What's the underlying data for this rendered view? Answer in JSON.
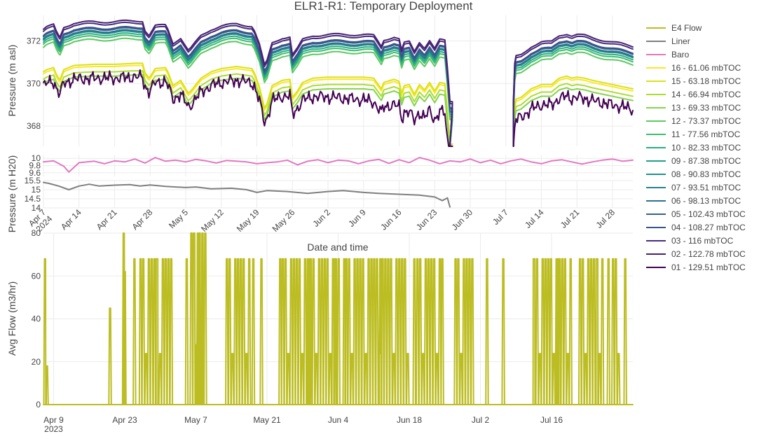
{
  "chart_data": {
    "type": "line",
    "title": "ELR1-R1: Temporary Deployment",
    "top_xaxis": {
      "label": "Date and time",
      "ticks": [
        {
          "label": "Apr 7\n2024",
          "day": 0
        },
        {
          "label": "Apr 14",
          "day": 7
        },
        {
          "label": "Apr 21",
          "day": 14
        },
        {
          "label": "Apr 28",
          "day": 21
        },
        {
          "label": "May 5",
          "day": 28
        },
        {
          "label": "May 12",
          "day": 35
        },
        {
          "label": "May 19",
          "day": 42
        },
        {
          "label": "May 26",
          "day": 49
        },
        {
          "label": "Jun 2",
          "day": 56
        },
        {
          "label": "Jun 9",
          "day": 63
        },
        {
          "label": "Jun 16",
          "day": 70
        },
        {
          "label": "Jun 23",
          "day": 77
        },
        {
          "label": "Jun 30",
          "day": 84
        },
        {
          "label": "Jul 7",
          "day": 91
        },
        {
          "label": "Jul 14",
          "day": 98
        },
        {
          "label": "Jul 21",
          "day": 105
        },
        {
          "label": "Jul 28",
          "day": 112
        }
      ],
      "range_days": [
        0,
        116
      ]
    },
    "bottom_xaxis": {
      "ticks": [
        {
          "label": "Apr 9\n2023",
          "day": 0
        },
        {
          "label": "Apr 23",
          "day": 14
        },
        {
          "label": "May 7",
          "day": 28
        },
        {
          "label": "May 21",
          "day": 42
        },
        {
          "label": "Jun 4",
          "day": 56
        },
        {
          "label": "Jun 18",
          "day": 70
        },
        {
          "label": "Jul 2",
          "day": 84
        },
        {
          "label": "Jul 16",
          "day": 98
        }
      ],
      "range_days": [
        -2,
        114
      ]
    },
    "panels": {
      "pressure": {
        "ylabel": "Pressure (m asl)",
        "ylim": [
          367.05,
          373.2
        ],
        "ticks": [
          368,
          370,
          372
        ]
      },
      "baro": {
        "ylabel": "",
        "ylim": [
          9.5,
          10.1
        ],
        "ticks": [
          9.6,
          9.8,
          10
        ]
      },
      "liner": {
        "ylabel": "Pressure (m H20)",
        "ylim": [
          14,
          15.5
        ],
        "ticks": [
          14,
          14.5,
          15,
          15.5
        ]
      },
      "flow": {
        "ylabel": "Avg Flow (m3/hr)",
        "ylim": [
          0,
          80
        ],
        "ticks": [
          0,
          20,
          40,
          60,
          80
        ]
      }
    },
    "legend_position": "right",
    "gap_days": [
      80.5,
      92.5
    ],
    "legend": [
      {
        "name": "E4 Flow",
        "color": "#bcbd22"
      },
      {
        "name": "Liner",
        "color": "#7f7f7f"
      },
      {
        "name": "Baro",
        "color": "#e377c2"
      },
      {
        "name": "16 - 61.06 mbTOC",
        "color": "#fde725"
      },
      {
        "name": "15 - 63.18 mbTOC",
        "color": "#d8e219"
      },
      {
        "name": "14 - 66.94 mbTOC",
        "color": "#addc30"
      },
      {
        "name": "13 - 69.33 mbTOC",
        "color": "#84d44b"
      },
      {
        "name": "12 - 73.37 mbTOC",
        "color": "#5ec962"
      },
      {
        "name": "11 - 77.56 mbTOC",
        "color": "#3fbc73"
      },
      {
        "name": "10 - 82.33 mbTOC",
        "color": "#28ae80"
      },
      {
        "name": "09 - 87.38 mbTOC",
        "color": "#1fa088"
      },
      {
        "name": "08 - 90.83 mbTOC",
        "color": "#21918c"
      },
      {
        "name": "07 - 93.51 mbTOC",
        "color": "#26828e"
      },
      {
        "name": "06 - 98.13 mbTOC",
        "color": "#2c728e"
      },
      {
        "name": "05 - 102.43 mbTOC",
        "color": "#33638d"
      },
      {
        "name": "04 - 108.27 mbTOC",
        "color": "#3b528b"
      },
      {
        "name": "03 - 116 mbTOC",
        "color": "#472d7b"
      },
      {
        "name": "02 - 122.78 mbTOC",
        "color": "#482173"
      },
      {
        "name": "01 - 129.51 mbTOC",
        "color": "#440154"
      }
    ],
    "port_offsets": [
      -0.15,
      -0.05,
      -0.4,
      -0.6,
      1.1,
      1.25,
      1.35,
      1.45,
      1.45,
      1.5,
      1.5,
      1.6,
      1.65,
      1.85,
      1.95,
      -0.7
    ],
    "pressure_base": [
      [
        0,
        370.6
      ],
      [
        0.6,
        370.7
      ],
      [
        2,
        370.8
      ],
      [
        2.5,
        370.5
      ],
      [
        3.2,
        370.2
      ],
      [
        4,
        370.7
      ],
      [
        6,
        370.9
      ],
      [
        10,
        370.95
      ],
      [
        14,
        370.95
      ],
      [
        18,
        371.0
      ],
      [
        19.5,
        371.0
      ],
      [
        20,
        370.55
      ],
      [
        20.8,
        370.3
      ],
      [
        22,
        370.75
      ],
      [
        24,
        370.8
      ],
      [
        24.5,
        370.6
      ],
      [
        25.5,
        369.95
      ],
      [
        27,
        370.2
      ],
      [
        28.5,
        369.6
      ],
      [
        29,
        369.7
      ],
      [
        31,
        370.3
      ],
      [
        33,
        370.6
      ],
      [
        35,
        370.75
      ],
      [
        38,
        370.85
      ],
      [
        41,
        370.75
      ],
      [
        41.5,
        370.55
      ],
      [
        42.5,
        369.9
      ],
      [
        43.5,
        368.9
      ],
      [
        44,
        369.1
      ],
      [
        45,
        369.95
      ],
      [
        47,
        370.2
      ],
      [
        48.5,
        370.25
      ],
      [
        49,
        369.4
      ],
      [
        50,
        369.7
      ],
      [
        51,
        370.1
      ],
      [
        53,
        370.3
      ],
      [
        56,
        370.35
      ],
      [
        59,
        370.35
      ],
      [
        63,
        370.35
      ],
      [
        65,
        370.3
      ],
      [
        66.5,
        369.8
      ],
      [
        67,
        370.1
      ],
      [
        69,
        370.25
      ],
      [
        70,
        370.15
      ],
      [
        70.5,
        369.6
      ],
      [
        71,
        369.95
      ],
      [
        72,
        370.0
      ],
      [
        73,
        369.55
      ],
      [
        74,
        370.0
      ],
      [
        75,
        369.75
      ],
      [
        76,
        370.1
      ],
      [
        77,
        369.7
      ],
      [
        78,
        370.1
      ],
      [
        79,
        370.05
      ],
      [
        79.6,
        368.5
      ],
      [
        80,
        367.2
      ],
      [
        92.5,
        367.2
      ],
      [
        92.8,
        369.3
      ],
      [
        94,
        369.4
      ],
      [
        96,
        369.8
      ],
      [
        98,
        370.0
      ],
      [
        100,
        370.0
      ],
      [
        101.5,
        370.3
      ],
      [
        103,
        370.4
      ],
      [
        104,
        370.3
      ],
      [
        105,
        370.35
      ],
      [
        106.5,
        370.3
      ],
      [
        108,
        370.2
      ],
      [
        110,
        370.1
      ],
      [
        112,
        370.0
      ],
      [
        114,
        369.9
      ],
      [
        116,
        369.8
      ]
    ],
    "baro_data": [
      [
        0,
        9.9
      ],
      [
        2,
        9.93
      ],
      [
        4,
        9.78
      ],
      [
        5,
        9.62
      ],
      [
        6,
        9.75
      ],
      [
        7,
        9.88
      ],
      [
        10,
        9.92
      ],
      [
        12,
        9.85
      ],
      [
        14,
        9.93
      ],
      [
        16,
        9.9
      ],
      [
        18,
        9.98
      ],
      [
        20,
        9.87
      ],
      [
        22,
        10.02
      ],
      [
        24,
        9.92
      ],
      [
        26,
        9.95
      ],
      [
        28,
        9.9
      ],
      [
        30,
        9.97
      ],
      [
        32,
        9.93
      ],
      [
        34,
        9.87
      ],
      [
        36,
        9.94
      ],
      [
        38,
        9.92
      ],
      [
        40,
        9.9
      ],
      [
        42,
        9.85
      ],
      [
        44,
        9.88
      ],
      [
        46,
        9.9
      ],
      [
        48,
        9.95
      ],
      [
        50,
        9.82
      ],
      [
        52,
        9.92
      ],
      [
        54,
        9.96
      ],
      [
        56,
        9.88
      ],
      [
        58,
        9.95
      ],
      [
        60,
        9.93
      ],
      [
        62,
        9.85
      ],
      [
        64,
        9.93
      ],
      [
        66,
        9.97
      ],
      [
        68,
        9.86
      ],
      [
        70,
        9.96
      ],
      [
        72,
        9.88
      ],
      [
        74,
        10.02
      ],
      [
        76,
        9.95
      ],
      [
        78,
        9.85
      ],
      [
        80,
        9.93
      ],
      [
        82,
        9.9
      ],
      [
        84,
        9.98
      ],
      [
        86,
        9.88
      ],
      [
        88,
        9.95
      ],
      [
        90,
        9.85
      ],
      [
        92,
        9.93
      ],
      [
        94,
        9.98
      ],
      [
        96,
        9.9
      ],
      [
        98,
        9.85
      ],
      [
        100,
        9.93
      ],
      [
        102,
        9.96
      ],
      [
        104,
        9.9
      ],
      [
        106,
        9.84
      ],
      [
        108,
        9.9
      ],
      [
        110,
        9.95
      ],
      [
        112,
        9.98
      ],
      [
        114,
        9.92
      ],
      [
        116,
        9.95
      ]
    ],
    "liner_data": [
      [
        0,
        15.4
      ],
      [
        1,
        15.35
      ],
      [
        3,
        15.2
      ],
      [
        5,
        15.0
      ],
      [
        7,
        15.2
      ],
      [
        9,
        15.3
      ],
      [
        11,
        15.2
      ],
      [
        14,
        15.25
      ],
      [
        17,
        15.28
      ],
      [
        19,
        15.2
      ],
      [
        21,
        15.26
      ],
      [
        24,
        15.18
      ],
      [
        28,
        15.12
      ],
      [
        30,
        15.15
      ],
      [
        33,
        15.05
      ],
      [
        37,
        15.08
      ],
      [
        40,
        15.0
      ],
      [
        42,
        14.85
      ],
      [
        44,
        14.95
      ],
      [
        48,
        14.9
      ],
      [
        52,
        14.8
      ],
      [
        56,
        14.9
      ],
      [
        59,
        14.95
      ],
      [
        63,
        14.85
      ],
      [
        66,
        14.8
      ],
      [
        70,
        14.75
      ],
      [
        74,
        14.7
      ],
      [
        77,
        14.6
      ],
      [
        78.5,
        14.4
      ],
      [
        79.5,
        14.55
      ],
      [
        80,
        14.05
      ]
    ],
    "flow_bursts": [
      [
        -1.8,
        68
      ],
      [
        -1.4,
        18
      ],
      [
        11,
        45
      ],
      [
        13.7,
        80
      ],
      [
        13.9,
        62
      ],
      [
        15.8,
        68
      ],
      [
        20.2,
        68
      ],
      [
        26.1,
        68
      ],
      [
        27.5,
        80
      ],
      [
        28.3,
        80
      ],
      [
        29,
        21
      ],
      [
        39.2,
        68
      ],
      [
        40.8,
        68
      ],
      [
        44.5,
        68
      ],
      [
        50.2,
        68
      ],
      [
        55.3,
        68
      ],
      [
        57.1,
        68
      ],
      [
        64.2,
        68
      ],
      [
        70.9,
        68
      ],
      [
        76.4,
        68
      ],
      [
        82.3,
        68
      ],
      [
        85.2,
        68
      ],
      [
        88.4,
        68
      ],
      [
        94.4,
        68
      ],
      [
        99.1,
        68
      ],
      [
        106.9,
        68
      ],
      [
        109.1,
        68
      ],
      [
        112.4,
        68
      ]
    ],
    "flow_blocks": [
      [
        [
          17,
          23.5
        ],
        68
      ],
      [
        [
          27,
          30
        ],
        80
      ],
      [
        [
          34,
          38.5
        ],
        68
      ],
      [
        [
          45,
          56
        ],
        68
      ],
      [
        [
          57.5,
          70
        ],
        68
      ],
      [
        [
          71.5,
          76
        ],
        68
      ],
      [
        [
          79,
          82
        ],
        68
      ],
      [
        [
          94.5,
          102
        ],
        68
      ],
      [
        [
          103.5,
          108
        ],
        68
      ],
      [
        [
          110,
          111.5
        ],
        68
      ]
    ]
  }
}
